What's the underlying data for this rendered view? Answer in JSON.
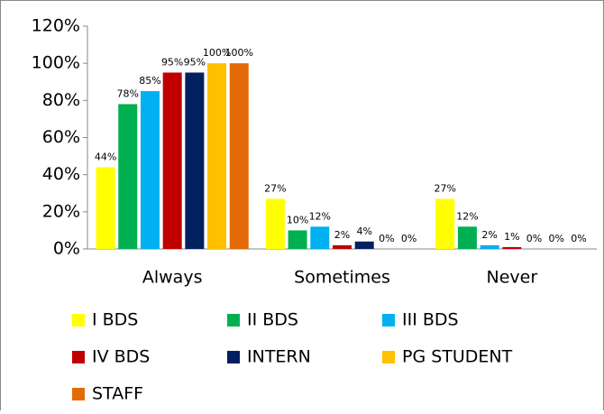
{
  "chart_data": {
    "type": "bar",
    "categories": [
      "Always",
      "Sometimes",
      "Never"
    ],
    "series": [
      {
        "name": "I BDS",
        "color": "#ffff00",
        "values": [
          44,
          27,
          27
        ],
        "value_labels": [
          "44%",
          "27%",
          "27%"
        ]
      },
      {
        "name": "II BDS",
        "color": "#00b050",
        "values": [
          78,
          10,
          12
        ],
        "value_labels": [
          "78%",
          "10%",
          "12%"
        ]
      },
      {
        "name": "III BDS",
        "color": "#00b0f0",
        "values": [
          85,
          12,
          2
        ],
        "value_labels": [
          "85%",
          "12%",
          "2%"
        ]
      },
      {
        "name": "IV BDS",
        "color": "#c00000",
        "values": [
          95,
          2,
          1
        ],
        "value_labels": [
          "95%",
          "2%",
          "1%"
        ]
      },
      {
        "name": "INTERN",
        "color": "#002060",
        "values": [
          95,
          4,
          0
        ],
        "value_labels": [
          "95%",
          "4%",
          "0%"
        ]
      },
      {
        "name": "PG STUDENT",
        "color": "#ffc000",
        "values": [
          100,
          0,
          0
        ],
        "value_labels": [
          "100%",
          "0%",
          "0%"
        ]
      },
      {
        "name": "STAFF",
        "color": "#e36c09",
        "values": [
          100,
          0,
          0
        ],
        "value_labels": [
          "100%",
          "0%",
          "0%"
        ]
      }
    ],
    "ylim": [
      0,
      120
    ],
    "yticks": [
      {
        "value": 0,
        "label": "0%"
      },
      {
        "value": 20,
        "label": "20%"
      },
      {
        "value": 40,
        "label": "40%"
      },
      {
        "value": 60,
        "label": "60%"
      },
      {
        "value": 80,
        "label": "80%"
      },
      {
        "value": 100,
        "label": "100%"
      },
      {
        "value": 120,
        "label": "120%"
      }
    ],
    "grid": false,
    "legend": "bottom"
  }
}
